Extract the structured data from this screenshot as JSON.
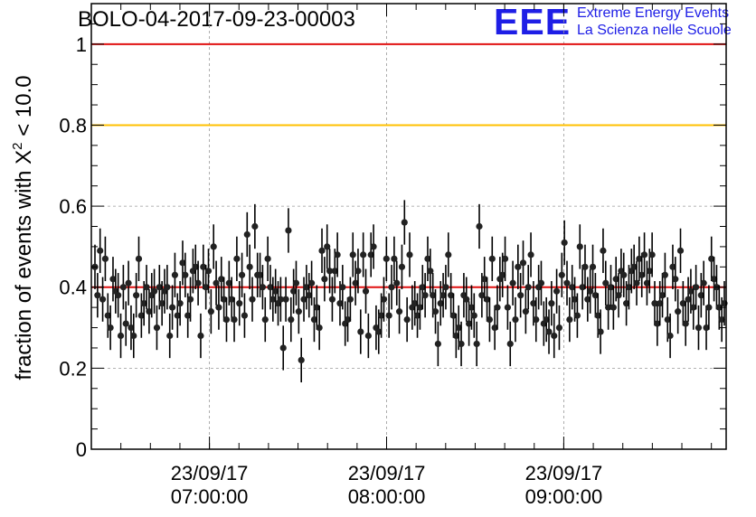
{
  "title": "BOLO-04-2017-09-23-00003",
  "logo": {
    "mark": "EEE",
    "line1": "Extreme Energy Events",
    "line2": "La Scienza nelle Scuole"
  },
  "colors": {
    "logo": "#1e1ee6",
    "threshold_high": "#e01010",
    "threshold_warn": "#ffc000",
    "mean_line": "#e01010",
    "points": "#000000",
    "grid": "#999999"
  },
  "chart_data": {
    "type": "scatter",
    "title": "BOLO-04-2017-09-23-00003",
    "xlabel": "",
    "ylabel": {
      "prefix": "fraction of events with ",
      "symbol": "X",
      "superscript": "2",
      "suffix": " < 10.0"
    },
    "x_start": "2017-09-23 06:20:00",
    "x_end": "2017-09-23 09:55:00",
    "ylim": [
      0,
      1.1
    ],
    "grid": true,
    "yticks": [
      {
        "v": 0,
        "label": "0"
      },
      {
        "v": 0.2,
        "label": "0.2"
      },
      {
        "v": 0.4,
        "label": "0.4"
      },
      {
        "v": 0.6,
        "label": "0.6"
      },
      {
        "v": 0.8,
        "label": "0.8"
      },
      {
        "v": 1,
        "label": "1"
      }
    ],
    "xticks": [
      {
        "t": "2017-09-23 07:00:00",
        "line1": "23/09/17",
        "line2": "07:00:00"
      },
      {
        "t": "2017-09-23 08:00:00",
        "line1": "23/09/17",
        "line2": "08:00:00"
      },
      {
        "t": "2017-09-23 09:00:00",
        "line1": "23/09/17",
        "line2": "09:00:00"
      }
    ],
    "reference_lines": [
      {
        "y": 1.0,
        "color": "#e01010"
      },
      {
        "y": 0.8,
        "color": "#ffc000"
      },
      {
        "y": 0.4,
        "color": "#e01010"
      }
    ],
    "error": 0.055,
    "y": [
      0.45,
      0.38,
      0.49,
      0.37,
      0.47,
      0.33,
      0.3,
      0.42,
      0.39,
      0.38,
      0.28,
      0.4,
      0.31,
      0.41,
      0.3,
      0.28,
      0.38,
      0.47,
      0.33,
      0.36,
      0.4,
      0.34,
      0.38,
      0.39,
      0.3,
      0.4,
      0.36,
      0.39,
      0.4,
      0.28,
      0.35,
      0.43,
      0.33,
      0.36,
      0.46,
      0.43,
      0.33,
      0.37,
      0.44,
      0.45,
      0.41,
      0.28,
      0.45,
      0.4,
      0.44,
      0.34,
      0.5,
      0.41,
      0.35,
      0.42,
      0.37,
      0.32,
      0.41,
      0.37,
      0.32,
      0.47,
      0.36,
      0.43,
      0.33,
      0.53,
      0.45,
      0.37,
      0.55,
      0.43,
      0.43,
      0.4,
      0.32,
      0.47,
      0.4,
      0.37,
      0.39,
      0.36,
      0.37,
      0.25,
      0.37,
      0.54,
      0.32,
      0.39,
      0.41,
      0.34,
      0.22,
      0.37,
      0.4,
      0.38,
      0.41,
      0.32,
      0.35,
      0.3,
      0.49,
      0.42,
      0.5,
      0.44,
      0.37,
      0.44,
      0.48,
      0.36,
      0.4,
      0.31,
      0.32,
      0.37,
      0.48,
      0.41,
      0.44,
      0.29,
      0.48,
      0.39,
      0.28,
      0.48,
      0.5,
      0.3,
      0.29,
      0.33,
      0.37,
      0.47,
      0.33,
      0.4,
      0.47,
      0.41,
      0.34,
      0.45,
      0.56,
      0.32,
      0.48,
      0.35,
      0.36,
      0.33,
      0.35,
      0.4,
      0.38,
      0.47,
      0.44,
      0.38,
      0.34,
      0.26,
      0.36,
      0.38,
      0.4,
      0.48,
      0.38,
      0.33,
      0.28,
      0.3,
      0.26,
      0.38,
      0.37,
      0.31,
      0.35,
      0.33,
      0.26,
      0.55,
      0.38,
      0.42,
      0.37,
      0.32,
      0.47,
      0.3,
      0.35,
      0.42,
      0.43,
      0.47,
      0.35,
      0.26,
      0.41,
      0.32,
      0.45,
      0.38,
      0.46,
      0.34,
      0.4,
      0.48,
      0.36,
      0.32,
      0.4,
      0.41,
      0.31,
      0.32,
      0.29,
      0.36,
      0.28,
      0.39,
      0.3,
      0.43,
      0.51,
      0.41,
      0.32,
      0.4,
      0.37,
      0.33,
      0.5,
      0.4,
      0.45,
      0.37,
      0.39,
      0.45,
      0.38,
      0.33,
      0.29,
      0.49,
      0.41,
      0.35,
      0.4,
      0.35,
      0.42,
      0.38,
      0.44,
      0.43,
      0.36,
      0.4,
      0.44,
      0.45,
      0.41,
      0.47,
      0.43,
      0.48,
      0.41,
      0.44,
      0.48,
      0.36,
      0.31,
      0.36,
      0.38,
      0.43,
      0.32,
      0.28,
      0.45,
      0.42,
      0.34,
      0.49,
      0.36,
      0.31,
      0.37,
      0.39,
      0.35,
      0.4,
      0.3,
      0.38,
      0.41,
      0.3,
      0.35,
      0.47,
      0.42,
      0.4,
      0.35,
      0.32,
      0.36
    ]
  }
}
